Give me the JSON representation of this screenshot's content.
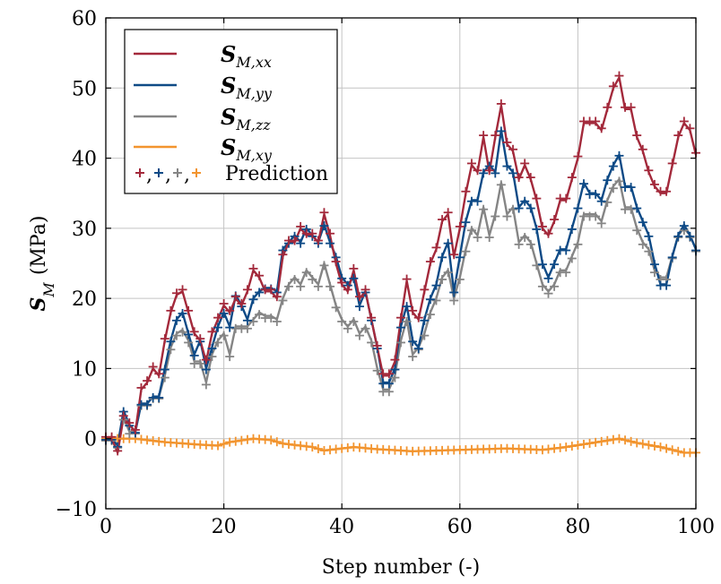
{
  "chart_data": {
    "type": "line",
    "title": "",
    "xlabel": "Step number (-)",
    "ylabel": {
      "symbol": "S",
      "subscript": "M",
      "unit": "(MPa)"
    },
    "xlim": [
      0,
      100
    ],
    "ylim": [
      -10,
      60
    ],
    "xticks": [
      0,
      20,
      40,
      60,
      80,
      100
    ],
    "yticks": [
      -10,
      0,
      10,
      20,
      30,
      40,
      50,
      60
    ],
    "xtick_labels": [
      "0",
      "20",
      "40",
      "60",
      "80",
      "100"
    ],
    "ytick_labels": [
      "−10",
      "0",
      "10",
      "20",
      "30",
      "40",
      "50",
      "60"
    ],
    "grid": true,
    "legend_position": "top-left",
    "colors": {
      "xx": "#a3293b",
      "yy": "#0e4a86",
      "zz": "#858585",
      "xy": "#f2942e"
    },
    "legend": [
      {
        "key": "xx",
        "symbol": "S",
        "subscript": "M,xx",
        "type": "line"
      },
      {
        "key": "yy",
        "symbol": "S",
        "subscript": "M,yy",
        "type": "line"
      },
      {
        "key": "zz",
        "symbol": "S",
        "subscript": "M,zz",
        "type": "line"
      },
      {
        "key": "xy",
        "symbol": "S",
        "subscript": "M,xy",
        "type": "line"
      },
      {
        "key": "pred",
        "label": "Prediction",
        "markers": [
          "+",
          "+",
          "+",
          "+"
        ],
        "separator": ","
      }
    ],
    "series_keypoints": {
      "xx": [
        [
          0,
          0
        ],
        [
          1,
          0
        ],
        [
          2,
          -2
        ],
        [
          3,
          3
        ],
        [
          4,
          2
        ],
        [
          5,
          1
        ],
        [
          6,
          7
        ],
        [
          7,
          8
        ],
        [
          8,
          10
        ],
        [
          9,
          9
        ],
        [
          10,
          14
        ],
        [
          11,
          18
        ],
        [
          12,
          20.5
        ],
        [
          13,
          21
        ],
        [
          14,
          18
        ],
        [
          15,
          15
        ],
        [
          16,
          14
        ],
        [
          17,
          11
        ],
        [
          18,
          15
        ],
        [
          19,
          17
        ],
        [
          20,
          19
        ],
        [
          21,
          18
        ],
        [
          22,
          20
        ],
        [
          23,
          19
        ],
        [
          24,
          21
        ],
        [
          25,
          24
        ],
        [
          26,
          23
        ],
        [
          27,
          21
        ],
        [
          28,
          21
        ],
        [
          29,
          20
        ],
        [
          30,
          26
        ],
        [
          31,
          28
        ],
        [
          32,
          28
        ],
        [
          33,
          30
        ],
        [
          34,
          29
        ],
        [
          35,
          29
        ],
        [
          36,
          28
        ],
        [
          37,
          32
        ],
        [
          38,
          29
        ],
        [
          39,
          25
        ],
        [
          40,
          22
        ],
        [
          41,
          21
        ],
        [
          42,
          24
        ],
        [
          43,
          20
        ],
        [
          44,
          21
        ],
        [
          45,
          17
        ],
        [
          46,
          13
        ],
        [
          47,
          9
        ],
        [
          48,
          9
        ],
        [
          49,
          11
        ],
        [
          50,
          17
        ],
        [
          51,
          22.5
        ],
        [
          52,
          18
        ],
        [
          53,
          17
        ],
        [
          54,
          21
        ],
        [
          55,
          25
        ],
        [
          56,
          27
        ],
        [
          57,
          31
        ],
        [
          58,
          32
        ],
        [
          59,
          26
        ],
        [
          60,
          30
        ],
        [
          61,
          35
        ],
        [
          62,
          39
        ],
        [
          63,
          38
        ],
        [
          64,
          43
        ],
        [
          65,
          38
        ],
        [
          66,
          43
        ],
        [
          67,
          47.5
        ],
        [
          68,
          42
        ],
        [
          69,
          41
        ],
        [
          70,
          37
        ],
        [
          71,
          39
        ],
        [
          72,
          37
        ],
        [
          73,
          34
        ],
        [
          74,
          30
        ],
        [
          75,
          29
        ],
        [
          76,
          31
        ],
        [
          77,
          34
        ],
        [
          78,
          34
        ],
        [
          79,
          37
        ],
        [
          80,
          40
        ],
        [
          81,
          45
        ],
        [
          82,
          45
        ],
        [
          83,
          45
        ],
        [
          84,
          44
        ],
        [
          85,
          47
        ],
        [
          86,
          50
        ],
        [
          87,
          51.5
        ],
        [
          88,
          47
        ],
        [
          89,
          47
        ],
        [
          90,
          43
        ],
        [
          91,
          41
        ],
        [
          92,
          38
        ],
        [
          93,
          36
        ],
        [
          94,
          35
        ],
        [
          95,
          35
        ],
        [
          96,
          39
        ],
        [
          97,
          43
        ],
        [
          98,
          45
        ],
        [
          99,
          44
        ],
        [
          100,
          40.5
        ]
      ],
      "yy": [
        [
          0,
          0
        ],
        [
          1,
          0
        ],
        [
          2,
          -1
        ],
        [
          3,
          4
        ],
        [
          4,
          2
        ],
        [
          5,
          1
        ],
        [
          6,
          5
        ],
        [
          7,
          5
        ],
        [
          8,
          6
        ],
        [
          9,
          6
        ],
        [
          10,
          10
        ],
        [
          11,
          14
        ],
        [
          12,
          17
        ],
        [
          13,
          18
        ],
        [
          14,
          15
        ],
        [
          15,
          12
        ],
        [
          16,
          14
        ],
        [
          17,
          10
        ],
        [
          18,
          13
        ],
        [
          19,
          16
        ],
        [
          20,
          18
        ],
        [
          21,
          16
        ],
        [
          22,
          20.5
        ],
        [
          23,
          19
        ],
        [
          24,
          17
        ],
        [
          25,
          20
        ],
        [
          26,
          21
        ],
        [
          27,
          21.5
        ],
        [
          28,
          21.5
        ],
        [
          29,
          21
        ],
        [
          30,
          27
        ],
        [
          31,
          28
        ],
        [
          32,
          29
        ],
        [
          33,
          28
        ],
        [
          34,
          30
        ],
        [
          35,
          29
        ],
        [
          36,
          28
        ],
        [
          37,
          30.5
        ],
        [
          38,
          28
        ],
        [
          39,
          26
        ],
        [
          40,
          23
        ],
        [
          41,
          22
        ],
        [
          42,
          23
        ],
        [
          43,
          19
        ],
        [
          44,
          21
        ],
        [
          45,
          17
        ],
        [
          46,
          13
        ],
        [
          47,
          8
        ],
        [
          48,
          8
        ],
        [
          49,
          10
        ],
        [
          50,
          16
        ],
        [
          51,
          19
        ],
        [
          52,
          14
        ],
        [
          53,
          13
        ],
        [
          54,
          17
        ],
        [
          55,
          20
        ],
        [
          56,
          22
        ],
        [
          57,
          26
        ],
        [
          58,
          28
        ],
        [
          59,
          21
        ],
        [
          60,
          26
        ],
        [
          61,
          31
        ],
        [
          62,
          34
        ],
        [
          63,
          34
        ],
        [
          64,
          38
        ],
        [
          65,
          39
        ],
        [
          66,
          38
        ],
        [
          67,
          44
        ],
        [
          68,
          39
        ],
        [
          69,
          38
        ],
        [
          70,
          33
        ],
        [
          71,
          34
        ],
        [
          72,
          33
        ],
        [
          73,
          30
        ],
        [
          74,
          25
        ],
        [
          75,
          23
        ],
        [
          76,
          25
        ],
        [
          77,
          27
        ],
        [
          78,
          27
        ],
        [
          79,
          30
        ],
        [
          80,
          33
        ],
        [
          81,
          36.5
        ],
        [
          82,
          35
        ],
        [
          83,
          35
        ],
        [
          84,
          34
        ],
        [
          85,
          37
        ],
        [
          86,
          39
        ],
        [
          87,
          40.5
        ],
        [
          88,
          36
        ],
        [
          89,
          36
        ],
        [
          90,
          33
        ],
        [
          91,
          31
        ],
        [
          92,
          29
        ],
        [
          93,
          25
        ],
        [
          94,
          22
        ],
        [
          95,
          22
        ],
        [
          96,
          26
        ],
        [
          97,
          29
        ],
        [
          98,
          30.5
        ],
        [
          99,
          29
        ],
        [
          100,
          27
        ]
      ],
      "zz": [
        [
          0,
          0
        ],
        [
          1,
          0
        ],
        [
          2,
          -1
        ],
        [
          3,
          3
        ],
        [
          4,
          1
        ],
        [
          5,
          1
        ],
        [
          6,
          5
        ],
        [
          7,
          5
        ],
        [
          8,
          6
        ],
        [
          9,
          6
        ],
        [
          10,
          9
        ],
        [
          11,
          13
        ],
        [
          12,
          15
        ],
        [
          13,
          15.5
        ],
        [
          14,
          14
        ],
        [
          15,
          11
        ],
        [
          16,
          11
        ],
        [
          17,
          8
        ],
        [
          18,
          12
        ],
        [
          19,
          14
        ],
        [
          20,
          15
        ],
        [
          21,
          12
        ],
        [
          22,
          16
        ],
        [
          23,
          16
        ],
        [
          24,
          16
        ],
        [
          25,
          17
        ],
        [
          26,
          18
        ],
        [
          27,
          17.5
        ],
        [
          28,
          17.5
        ],
        [
          29,
          17
        ],
        [
          30,
          20
        ],
        [
          31,
          22
        ],
        [
          32,
          23
        ],
        [
          33,
          22
        ],
        [
          34,
          24
        ],
        [
          35,
          23
        ],
        [
          36,
          22
        ],
        [
          37,
          25
        ],
        [
          38,
          22
        ],
        [
          39,
          19
        ],
        [
          40,
          17
        ],
        [
          41,
          16
        ],
        [
          42,
          17
        ],
        [
          43,
          15
        ],
        [
          44,
          16
        ],
        [
          45,
          14
        ],
        [
          46,
          10
        ],
        [
          47,
          7
        ],
        [
          48,
          7
        ],
        [
          49,
          9
        ],
        [
          50,
          14
        ],
        [
          51,
          17
        ],
        [
          52,
          12
        ],
        [
          53,
          13
        ],
        [
          54,
          15
        ],
        [
          55,
          18
        ],
        [
          56,
          20
        ],
        [
          57,
          23
        ],
        [
          58,
          24
        ],
        [
          59,
          20
        ],
        [
          60,
          23
        ],
        [
          61,
          27
        ],
        [
          62,
          30
        ],
        [
          63,
          29
        ],
        [
          64,
          33
        ],
        [
          65,
          29
        ],
        [
          66,
          32
        ],
        [
          67,
          36.5
        ],
        [
          68,
          32
        ],
        [
          69,
          33
        ],
        [
          70,
          28
        ],
        [
          71,
          29
        ],
        [
          72,
          28
        ],
        [
          73,
          25
        ],
        [
          74,
          22
        ],
        [
          75,
          21
        ],
        [
          76,
          22
        ],
        [
          77,
          24
        ],
        [
          78,
          24
        ],
        [
          79,
          26
        ],
        [
          80,
          28
        ],
        [
          81,
          32
        ],
        [
          82,
          32
        ],
        [
          83,
          32
        ],
        [
          84,
          31
        ],
        [
          85,
          34
        ],
        [
          86,
          36
        ],
        [
          87,
          37
        ],
        [
          88,
          33
        ],
        [
          89,
          33
        ],
        [
          90,
          30
        ],
        [
          91,
          28
        ],
        [
          92,
          27
        ],
        [
          93,
          24
        ],
        [
          94,
          23
        ],
        [
          95,
          23
        ],
        [
          96,
          26
        ],
        [
          97,
          29
        ],
        [
          98,
          30
        ],
        [
          99,
          29
        ],
        [
          100,
          27
        ]
      ],
      "xy": [
        [
          0,
          0
        ],
        [
          5,
          0
        ],
        [
          10,
          -0.5
        ],
        [
          15,
          -0.8
        ],
        [
          19,
          -1
        ],
        [
          21,
          -0.5
        ],
        [
          25,
          0
        ],
        [
          28,
          -0.2
        ],
        [
          30,
          -0.7
        ],
        [
          35,
          -1.2
        ],
        [
          37,
          -1.7
        ],
        [
          42,
          -1.2
        ],
        [
          46,
          -1.5
        ],
        [
          52,
          -1.8
        ],
        [
          60,
          -1.6
        ],
        [
          68,
          -1.4
        ],
        [
          74,
          -1.6
        ],
        [
          78,
          -1.2
        ],
        [
          84,
          -0.4
        ],
        [
          87,
          0
        ],
        [
          90,
          -0.6
        ],
        [
          94,
          -1.2
        ],
        [
          98,
          -2
        ],
        [
          100,
          -2
        ]
      ]
    },
    "series": [
      {
        "key": "xx",
        "values": []
      },
      {
        "key": "yy",
        "values": []
      },
      {
        "key": "zz",
        "values": []
      },
      {
        "key": "xy",
        "values": []
      }
    ]
  }
}
